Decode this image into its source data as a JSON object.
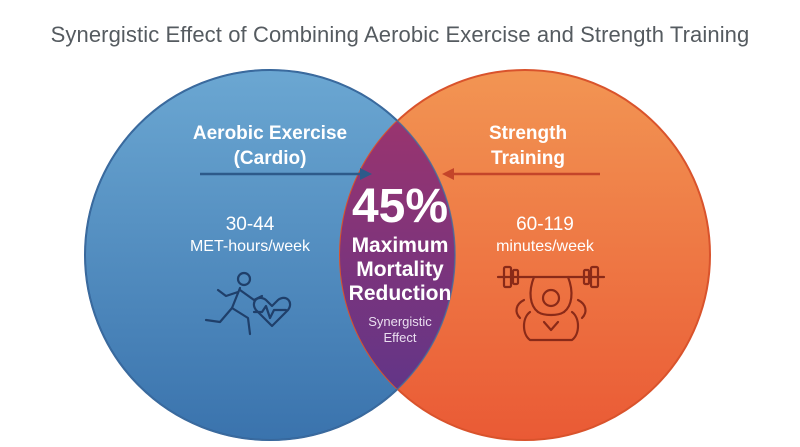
{
  "title": "Synergistic Effect of Combining Aerobic Exercise and Strength Training",
  "left_circle": {
    "title_line1": "Aerobic Exercise",
    "title_line2": "(Cardio)",
    "value": "30-44",
    "unit": "MET-hours/week",
    "icon": "runner-heart-icon",
    "color": "#3f7fb6"
  },
  "right_circle": {
    "title_line1": "Strength",
    "title_line2": "Training",
    "value": "60-119",
    "unit": "minutes/week",
    "icon": "weightlifter-icon",
    "color": "#ef6a3a"
  },
  "overlap": {
    "value": "45%",
    "label_line1": "Maximum",
    "label_line2": "Mortality",
    "label_line3": "Reduction",
    "sub_line1": "Synergistic",
    "sub_line2": "Effect",
    "color": "#7b3680"
  }
}
